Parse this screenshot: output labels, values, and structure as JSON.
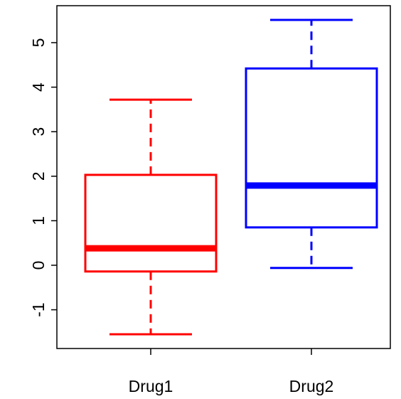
{
  "chart_data": {
    "type": "box",
    "categories": [
      "Drug1",
      "Drug2"
    ],
    "boxes": [
      {
        "min": -1.55,
        "q1": -0.14,
        "median": 0.38,
        "q3": 2.03,
        "max": 3.72,
        "color": "#ff0000"
      },
      {
        "min": -0.06,
        "q1": 0.85,
        "median": 1.79,
        "q3": 4.42,
        "max": 5.51,
        "color": "#0000ff"
      }
    ],
    "ylim": [
      -1.87,
      5.83
    ],
    "yticks": [
      -1,
      0,
      1,
      2,
      3,
      4,
      5
    ]
  }
}
